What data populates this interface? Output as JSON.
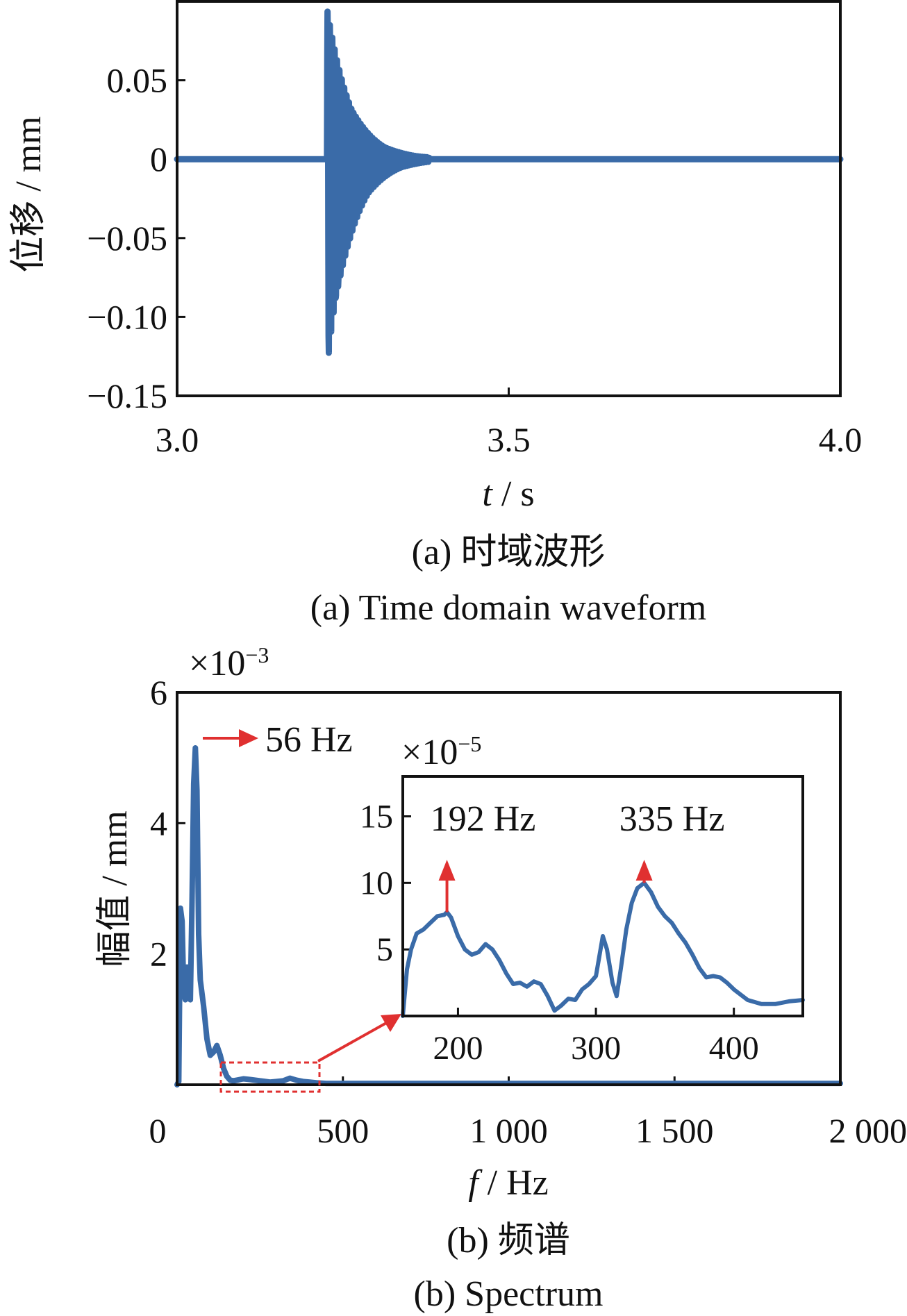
{
  "colors": {
    "series": "#3a6ba8",
    "annotation": "#e03030",
    "axis": "#111111"
  },
  "chart_data": [
    {
      "type": "line",
      "caption_cn": "(a)  时域波形",
      "caption_en": "(a)  Time domain waveform",
      "xlabel_var": "t",
      "xlabel_unit": " / s",
      "ylabel": "位移 / mm",
      "xlim": [
        3.0,
        4.0
      ],
      "ylim": [
        -0.15,
        0.1
      ],
      "xticks": [
        {
          "value": 3.0,
          "label": "3.0"
        },
        {
          "value": 3.5,
          "label": "3.5"
        },
        {
          "value": 4.0,
          "label": "4.0"
        }
      ],
      "yticks": [
        {
          "value": 0.05,
          "label": "0.05"
        },
        {
          "value": 0,
          "label": "0"
        },
        {
          "value": -0.05,
          "label": "−0.05"
        },
        {
          "value": -0.1,
          "label": "−0.10"
        },
        {
          "value": -0.15,
          "label": "−0.15"
        }
      ],
      "series": [
        {
          "impact_time": 3.226,
          "peak_positive": 0.097,
          "peak_negative": -0.136,
          "oscillation_frequency_hz": 56,
          "decay_end_time": 3.38
        }
      ]
    },
    {
      "type": "line",
      "caption_cn": "(b)  频谱",
      "caption_en": "(b)  Spectrum",
      "xlabel_var": "f",
      "xlabel_unit": " / Hz",
      "ylabel": "幅值 / mm",
      "y_multiplier": "×10",
      "y_multiplier_exp": "−3",
      "xlim": [
        0,
        2000
      ],
      "ylim": [
        0,
        6
      ],
      "xticks": [
        {
          "value": 0,
          "label": "0"
        },
        {
          "value": 500,
          "label": "500"
        },
        {
          "value": 1000,
          "label": "1 000"
        },
        {
          "value": 1500,
          "label": "1 500"
        },
        {
          "value": 2000,
          "label": "2 000"
        }
      ],
      "yticks": [
        {
          "value": 2,
          "label": "2"
        },
        {
          "value": 4,
          "label": "4"
        },
        {
          "value": 6,
          "label": "6"
        }
      ],
      "annotations": [
        {
          "label": "56 Hz",
          "x": 56,
          "y": 5.15
        }
      ],
      "series": [
        {
          "x": [
            0,
            5,
            10,
            15,
            20,
            25,
            30,
            35,
            40,
            45,
            50,
            55,
            60,
            65,
            70,
            80,
            90,
            100,
            110,
            120,
            130,
            140,
            150,
            155,
            160,
            170,
            180,
            200,
            220,
            250,
            280,
            300,
            320,
            340,
            360,
            380,
            400,
            420,
            450,
            500,
            600,
            800,
            1000,
            1200,
            1500,
            1800,
            2000
          ],
          "y": [
            0,
            0.05,
            2.7,
            2.5,
            1.4,
            1.3,
            1.8,
            1.4,
            1.3,
            2.8,
            4.6,
            5.15,
            4.5,
            2.3,
            1.6,
            1.2,
            0.7,
            0.45,
            0.5,
            0.6,
            0.45,
            0.25,
            0.13,
            0.1,
            0.07,
            0.06,
            0.07,
            0.09,
            0.08,
            0.06,
            0.04,
            0.05,
            0.06,
            0.1,
            0.07,
            0.05,
            0.04,
            0.03,
            0.02,
            0.02,
            0.02,
            0.02,
            0.02,
            0.02,
            0.02,
            0.02,
            0.02
          ]
        }
      ],
      "inset": {
        "y_multiplier": "×10",
        "y_multiplier_exp": "−5",
        "xlim": [
          160,
          450
        ],
        "ylim": [
          0,
          18
        ],
        "xticks": [
          {
            "value": 200,
            "label": "200"
          },
          {
            "value": 300,
            "label": "300"
          },
          {
            "value": 400,
            "label": "400"
          }
        ],
        "yticks": [
          {
            "value": 5,
            "label": "5"
          },
          {
            "value": 10,
            "label": "10"
          },
          {
            "value": 15,
            "label": "15"
          }
        ],
        "annotations": [
          {
            "label": "192 Hz",
            "x": 192,
            "y": 7.8
          },
          {
            "label": "335 Hz",
            "x": 335,
            "y": 10
          }
        ],
        "series": [
          {
            "x": [
              160,
              163,
              166,
              170,
              175,
              180,
              185,
              190,
              192,
              195,
              200,
              205,
              210,
              215,
              220,
              225,
              230,
              235,
              240,
              245,
              250,
              255,
              260,
              265,
              270,
              275,
              280,
              285,
              290,
              295,
              300,
              305,
              308,
              312,
              315,
              318,
              322,
              326,
              330,
              335,
              340,
              345,
              350,
              355,
              360,
              365,
              370,
              375,
              380,
              385,
              390,
              395,
              400,
              410,
              420,
              430,
              440,
              450
            ],
            "y": [
              0,
              3.5,
              5.0,
              6.2,
              6.5,
              7.0,
              7.5,
              7.6,
              7.8,
              7.4,
              6.0,
              5.0,
              4.6,
              4.8,
              5.4,
              5.0,
              4.2,
              3.2,
              2.4,
              2.5,
              2.2,
              2.6,
              2.4,
              1.5,
              0.4,
              0.8,
              1.3,
              1.2,
              2.0,
              2.4,
              3.0,
              6.0,
              5.0,
              2.5,
              1.5,
              3.5,
              6.5,
              8.5,
              9.6,
              10.0,
              9.3,
              8.2,
              7.5,
              7.0,
              6.2,
              5.5,
              4.6,
              3.6,
              2.9,
              3.0,
              2.9,
              2.5,
              2.0,
              1.2,
              0.9,
              0.9,
              1.1,
              1.2
            ]
          }
        ]
      }
    }
  ]
}
